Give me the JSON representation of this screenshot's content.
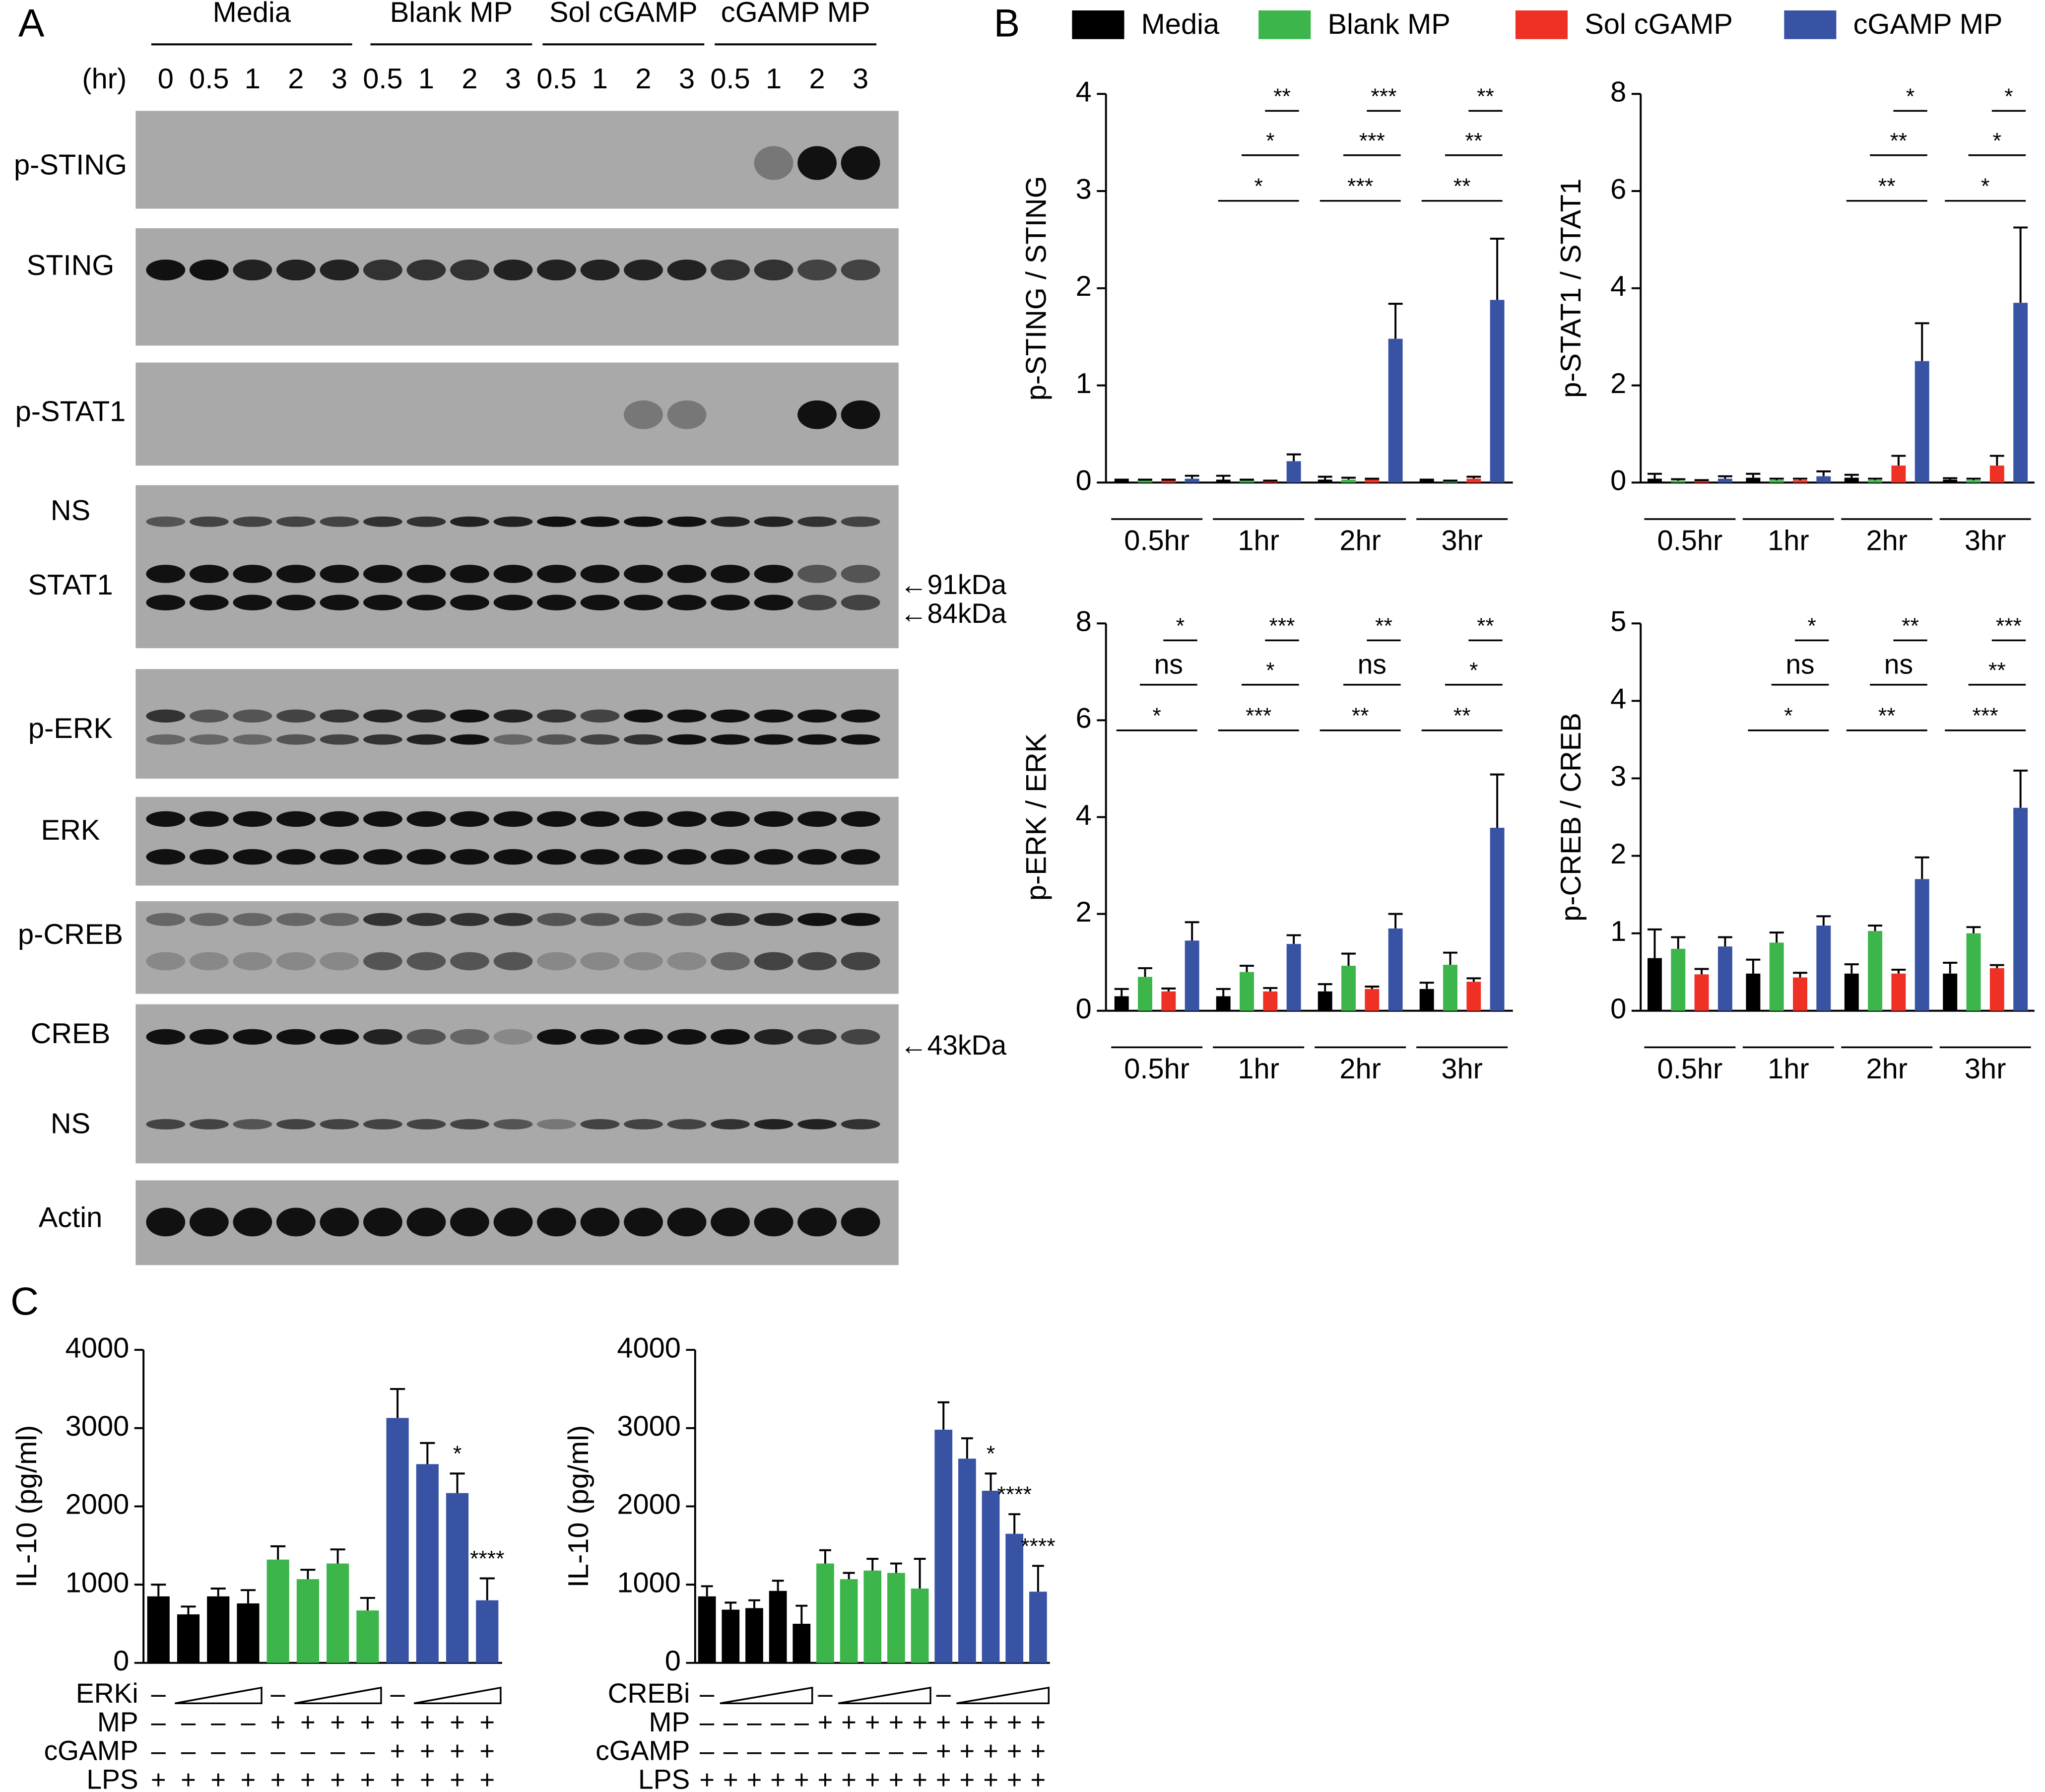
{
  "panel_labels": [
    "A",
    "B",
    "C"
  ],
  "blot": {
    "groups": [
      "Media",
      "Blank MP",
      "Sol cGAMP",
      "cGAMP MP"
    ],
    "time_label": "(hr)",
    "lanes": [
      "0",
      "0.5",
      "1",
      "2",
      "3",
      "0.5",
      "1",
      "2",
      "3",
      "0.5",
      "1",
      "2",
      "3",
      "0.5",
      "1",
      "2",
      "3"
    ],
    "rows": [
      "p-STING",
      "STING",
      "p-STAT1",
      "NS",
      "STAT1",
      "p-ERK",
      "ERK",
      "p-CREB",
      "CREB",
      "NS",
      "Actin"
    ],
    "markers": [
      "←91kDa",
      "←84kDa",
      "←43kDa"
    ]
  },
  "chart_data": [
    {
      "type": "bar",
      "ylabel": "p-STING / STING",
      "categories": [
        "0.5hr",
        "1hr",
        "2hr",
        "3hr"
      ],
      "series": [
        {
          "name": "Media",
          "color": "#000000",
          "values": [
            0.02,
            0.03,
            0.03,
            0.02
          ],
          "errors": [
            0.01,
            0.04,
            0.03,
            0.01
          ]
        },
        {
          "name": "Blank MP",
          "color": "#3cb54a",
          "values": [
            0.02,
            0.02,
            0.03,
            0.01
          ],
          "errors": [
            0.01,
            0.01,
            0.02,
            0.01
          ]
        },
        {
          "name": "Sol cGAMP",
          "color": "#ee3124",
          "values": [
            0.02,
            0.01,
            0.03,
            0.04
          ],
          "errors": [
            0.01,
            0.01,
            0.01,
            0.02
          ]
        },
        {
          "name": "cGAMP MP",
          "color": "#3953a4",
          "values": [
            0.04,
            0.22,
            1.48,
            1.88
          ],
          "errors": [
            0.03,
            0.07,
            0.36,
            0.63
          ]
        }
      ],
      "ylim": [
        0,
        4
      ],
      "yticks": [
        0,
        1,
        2,
        3,
        4
      ],
      "significance": [
        [
          null,
          null,
          null
        ],
        [
          "*",
          "*",
          "**"
        ],
        [
          "***",
          "***",
          "***"
        ],
        [
          "**",
          "**",
          "**"
        ]
      ]
    },
    {
      "type": "bar",
      "ylabel": "p-STAT1 / STAT1",
      "categories": [
        "0.5hr",
        "1hr",
        "2hr",
        "3hr"
      ],
      "series": [
        {
          "color": "#000000",
          "values": [
            0.08,
            0.1,
            0.1,
            0.06
          ],
          "errors": [
            0.1,
            0.08,
            0.06,
            0.03
          ]
        },
        {
          "color": "#3cb54a",
          "values": [
            0.04,
            0.05,
            0.05,
            0.05
          ],
          "errors": [
            0.03,
            0.03,
            0.03,
            0.03
          ]
        },
        {
          "color": "#ee3124",
          "values": [
            0.03,
            0.05,
            0.35,
            0.35
          ],
          "errors": [
            0.02,
            0.03,
            0.2,
            0.2
          ]
        },
        {
          "color": "#3953a4",
          "values": [
            0.08,
            0.13,
            2.5,
            3.7
          ],
          "errors": [
            0.05,
            0.1,
            0.78,
            1.55
          ]
        }
      ],
      "ylim": [
        0,
        8
      ],
      "yticks": [
        0,
        2,
        4,
        6,
        8
      ],
      "significance": [
        [
          null,
          null,
          null
        ],
        [
          null,
          null,
          null
        ],
        [
          "**",
          "**",
          "*"
        ],
        [
          "*",
          "*",
          "*"
        ]
      ]
    },
    {
      "type": "bar",
      "ylabel": "p-ERK / ERK",
      "categories": [
        "0.5hr",
        "1hr",
        "2hr",
        "3hr"
      ],
      "series": [
        {
          "color": "#000000",
          "values": [
            0.3,
            0.3,
            0.4,
            0.45
          ],
          "errors": [
            0.15,
            0.15,
            0.15,
            0.13
          ]
        },
        {
          "color": "#3cb54a",
          "values": [
            0.7,
            0.8,
            0.93,
            0.95
          ],
          "errors": [
            0.18,
            0.13,
            0.25,
            0.25
          ]
        },
        {
          "color": "#ee3124",
          "values": [
            0.4,
            0.4,
            0.45,
            0.6
          ],
          "errors": [
            0.06,
            0.07,
            0.05,
            0.07
          ]
        },
        {
          "color": "#3953a4",
          "values": [
            1.45,
            1.38,
            1.7,
            3.78
          ],
          "errors": [
            0.38,
            0.18,
            0.3,
            1.1
          ]
        }
      ],
      "ylim": [
        0,
        8
      ],
      "yticks": [
        0,
        2,
        4,
        6,
        8
      ],
      "significance": [
        [
          "*",
          "ns",
          "*"
        ],
        [
          "***",
          "*",
          "***"
        ],
        [
          "**",
          "ns",
          "**"
        ],
        [
          "**",
          "*",
          "**"
        ]
      ]
    },
    {
      "type": "bar",
      "ylabel": "p-CREB / CREB",
      "categories": [
        "0.5hr",
        "1hr",
        "2hr",
        "3hr"
      ],
      "series": [
        {
          "color": "#000000",
          "values": [
            0.68,
            0.48,
            0.48,
            0.48
          ],
          "errors": [
            0.37,
            0.18,
            0.12,
            0.14
          ]
        },
        {
          "color": "#3cb54a",
          "values": [
            0.8,
            0.88,
            1.03,
            1.0
          ],
          "errors": [
            0.15,
            0.13,
            0.07,
            0.08
          ]
        },
        {
          "color": "#ee3124",
          "values": [
            0.47,
            0.43,
            0.48,
            0.55
          ],
          "errors": [
            0.07,
            0.06,
            0.05,
            0.04
          ]
        },
        {
          "color": "#3953a4",
          "values": [
            0.83,
            1.1,
            1.7,
            2.62
          ],
          "errors": [
            0.12,
            0.12,
            0.28,
            0.48
          ]
        }
      ],
      "ylim": [
        0,
        5
      ],
      "yticks": [
        0,
        1,
        2,
        3,
        4,
        5
      ],
      "significance": [
        [
          null,
          null,
          null
        ],
        [
          "*",
          "ns",
          "*"
        ],
        [
          "**",
          "ns",
          "**"
        ],
        [
          "***",
          "**",
          "***"
        ]
      ]
    },
    {
      "type": "bar",
      "ylabel": "IL-10 (pg/ml)",
      "values": [
        850,
        620,
        850,
        760,
        1320,
        1070,
        1270,
        670,
        3130,
        2540,
        2170,
        800
      ],
      "errors": [
        150,
        100,
        100,
        170,
        170,
        120,
        180,
        160,
        370,
        270,
        250,
        280
      ],
      "colors": [
        "#000000",
        "#000000",
        "#000000",
        "#000000",
        "#3cb54a",
        "#3cb54a",
        "#3cb54a",
        "#3cb54a",
        "#3953a4",
        "#3953a4",
        "#3953a4",
        "#3953a4"
      ],
      "ylim": [
        0,
        4000
      ],
      "yticks": [
        0,
        1000,
        2000,
        3000,
        4000
      ],
      "significance": [
        null,
        null,
        null,
        null,
        null,
        null,
        null,
        null,
        null,
        null,
        "*",
        "****"
      ],
      "conditions": [
        {
          "name": "ERKi",
          "marks": [
            "–",
            null,
            null,
            null,
            "–",
            null,
            null,
            null,
            "–",
            null,
            null,
            null
          ]
        },
        {
          "name": "MP",
          "marks": [
            "–",
            "–",
            "–",
            "–",
            "+",
            "+",
            "+",
            "+",
            "+",
            "+",
            "+",
            "+"
          ]
        },
        {
          "name": "cGAMP",
          "marks": [
            "–",
            "–",
            "–",
            "–",
            "–",
            "–",
            "–",
            "–",
            "+",
            "+",
            "+",
            "+"
          ]
        },
        {
          "name": "LPS",
          "marks": [
            "+",
            "+",
            "+",
            "+",
            "+",
            "+",
            "+",
            "+",
            "+",
            "+",
            "+",
            "+"
          ]
        }
      ]
    },
    {
      "type": "bar",
      "ylabel": "IL-10 (pg/ml)",
      "values": [
        850,
        680,
        700,
        920,
        500,
        1270,
        1070,
        1180,
        1150,
        950,
        2980,
        2610,
        2200,
        1650,
        910
      ],
      "errors": [
        130,
        90,
        100,
        130,
        230,
        170,
        80,
        150,
        120,
        380,
        350,
        260,
        220,
        250,
        330
      ],
      "colors": [
        "#000000",
        "#000000",
        "#000000",
        "#000000",
        "#000000",
        "#3cb54a",
        "#3cb54a",
        "#3cb54a",
        "#3cb54a",
        "#3cb54a",
        "#3953a4",
        "#3953a4",
        "#3953a4",
        "#3953a4",
        "#3953a4"
      ],
      "ylim": [
        0,
        4000
      ],
      "yticks": [
        0,
        1000,
        2000,
        3000,
        4000
      ],
      "significance": [
        null,
        null,
        null,
        null,
        null,
        null,
        null,
        null,
        null,
        null,
        null,
        null,
        "*",
        "****",
        "****"
      ],
      "conditions": [
        {
          "name": "CREBi",
          "marks": [
            "–",
            null,
            null,
            null,
            null,
            "–",
            null,
            null,
            null,
            null,
            "–",
            null,
            null,
            null,
            null
          ]
        },
        {
          "name": "MP",
          "marks": [
            "–",
            "–",
            "–",
            "–",
            "–",
            "+",
            "+",
            "+",
            "+",
            "+",
            "+",
            "+",
            "+",
            "+",
            "+"
          ]
        },
        {
          "name": "cGAMP",
          "marks": [
            "–",
            "–",
            "–",
            "–",
            "–",
            "–",
            "–",
            "–",
            "–",
            "–",
            "+",
            "+",
            "+",
            "+",
            "+"
          ]
        },
        {
          "name": "LPS",
          "marks": [
            "+",
            "+",
            "+",
            "+",
            "+",
            "+",
            "+",
            "+",
            "+",
            "+",
            "+",
            "+",
            "+",
            "+",
            "+"
          ]
        }
      ]
    }
  ]
}
